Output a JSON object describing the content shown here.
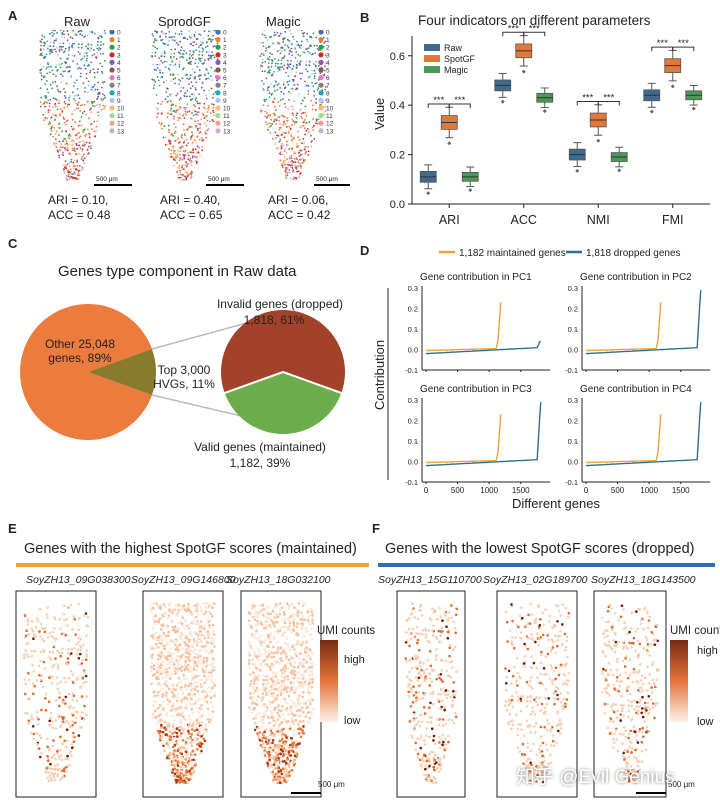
{
  "panels": {
    "A": "A",
    "B": "B",
    "C": "C",
    "D": "D",
    "E": "E",
    "F": "F"
  },
  "panelA": {
    "methods": [
      {
        "name": "Raw",
        "ari": "ARI = 0.10,",
        "acc": "ACC = 0.48"
      },
      {
        "name": "SprodGF",
        "ari": "ARI = 0.40,",
        "acc": "ACC = 0.65"
      },
      {
        "name": "Magic",
        "ari": "ARI = 0.06,",
        "acc": "ACC = 0.42"
      }
    ],
    "legend": [
      "0",
      "1",
      "2",
      "3",
      "4",
      "5",
      "6",
      "7",
      "8",
      "9",
      "10",
      "11",
      "12",
      "13"
    ],
    "legend_colors": [
      "#3b6fb6",
      "#f07e27",
      "#2e9e44",
      "#d62728",
      "#8c5aa8",
      "#8c564b",
      "#e377c2",
      "#7f7f7f",
      "#22a4b4",
      "#aec7e8",
      "#ffbb78",
      "#98df8a",
      "#ff9896",
      "#c5b0d5"
    ],
    "scale": "500 μm"
  },
  "chart_data": [
    {
      "type": "box",
      "title": "Four indicators on different parameters",
      "ylabel": "Value",
      "ylim": [
        0,
        0.68
      ],
      "yticks": [
        "0.0",
        "0.2",
        "0.4",
        "0.6"
      ],
      "categories": [
        "ARI",
        "ACC",
        "NMI",
        "FMI"
      ],
      "series": [
        {
          "name": "Raw",
          "color": "#3d6b8f",
          "medians": [
            0.11,
            0.48,
            0.2,
            0.44
          ]
        },
        {
          "name": "SpotGF",
          "color": "#e07a3a",
          "medians": [
            0.33,
            0.62,
            0.34,
            0.56
          ]
        },
        {
          "name": "Magic",
          "color": "#4a9a55",
          "medians": [
            0.11,
            0.43,
            0.19,
            0.44
          ]
        }
      ],
      "annotation": "***"
    },
    {
      "type": "pie",
      "title": "Genes type component in Raw data",
      "slices": [
        {
          "label": "Other 25,048 genes, 89%",
          "value": 89,
          "color": "#ec7b3e"
        },
        {
          "label": "Top 3,000 HVGs, 11%",
          "value": 11,
          "color": "#8a7a2c"
        }
      ],
      "subpie": [
        {
          "label": "Invalid genes (dropped)",
          "detail": "1,818, 61%",
          "value": 61,
          "color": "#a2422a"
        },
        {
          "label": "Valid genes (maintained)",
          "detail": "1,182, 39%",
          "value": 39,
          "color": "#6aad4a"
        }
      ],
      "text": {
        "other1": "Other 25,048",
        "other2": "genes, 89%",
        "top1": "Top 3,000",
        "top2": "HVGs, 11%",
        "inv1": "Invalid genes (dropped)",
        "inv2": "1,818, 61%",
        "val1": "Valid genes (maintained)",
        "val2": "1,182, 39%"
      }
    },
    {
      "type": "line",
      "legend": [
        {
          "label": "1,182 maintained genes",
          "color": "#e8a33a"
        },
        {
          "label": "1,818 dropped genes",
          "color": "#2f6f8e"
        }
      ],
      "xlabel": "Different genes",
      "ylabel": "Contribution",
      "ylim": [
        -0.1,
        0.3
      ],
      "yticks": [
        "0.3",
        "0.2",
        "0.1",
        "0.0",
        "-0.1"
      ],
      "xticks": [
        "0",
        "500",
        "1000",
        "1500"
      ],
      "subplots": [
        {
          "title": "Gene contribution in PC1"
        },
        {
          "title": "Gene contribution in PC2"
        },
        {
          "title": "Gene contribution in PC3"
        },
        {
          "title": "Gene contribution in PC4"
        }
      ]
    }
  ],
  "panelE": {
    "title": "Genes with the highest SpotGF scores (maintained)",
    "genes": [
      "SoyZH13_09G038300",
      "SoyZH13_09G146800",
      "SoyZH13_18G032100"
    ],
    "umi": "UMI counts",
    "high": "high",
    "low": "low",
    "scale": "500 μm"
  },
  "panelF": {
    "title": "Genes with the lowest SpotGF scores (dropped)",
    "genes": [
      "SoyZH13_15G110700",
      "SoyZH13_02G189700",
      "SoyZH13_18G143500"
    ],
    "umi": "UMI count",
    "high": "high",
    "low": "low",
    "scale": "500 μm"
  },
  "watermark": "知乎 @Evil Genius"
}
